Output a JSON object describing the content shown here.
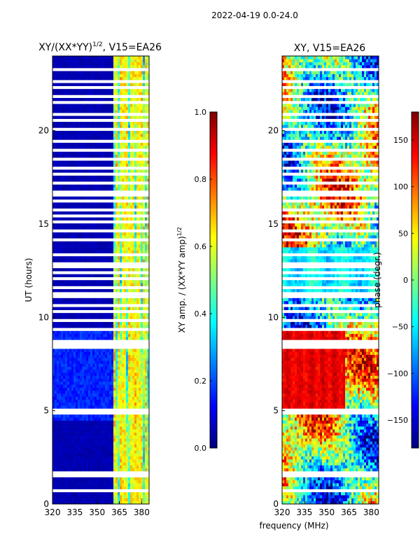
{
  "suptitle": "2022-04-19 0.0-24.0",
  "shared_xlabel": "frequency (MHz)",
  "colors": {
    "jet": [
      "#00007f",
      "#0000ff",
      "#007fff",
      "#00ffff",
      "#7fff7f",
      "#ffff00",
      "#ff7f00",
      "#ff0000",
      "#7f0000"
    ],
    "flag_gap": "#ffffff",
    "frame": "#000000"
  },
  "chart_data": [
    {
      "type": "heatmap",
      "title_base": "XY/(XX*YY)",
      "title_power": "1/2",
      "title_suffix": ", V15=EA26",
      "xlabel": "",
      "ylabel": "UT (hours)",
      "xlim": [
        320,
        385
      ],
      "ylim": [
        0,
        24
      ],
      "xticks": [
        320,
        335,
        350,
        365,
        380
      ],
      "yticks": [
        0,
        5,
        10,
        15,
        20
      ],
      "colorbar": {
        "label": "XY amp. / (XX*YY amp)",
        "label_power": "1/2",
        "range": [
          0.0,
          1.0
        ],
        "ticks": [
          "0.0",
          "0.2",
          "0.4",
          "0.6",
          "0.8",
          "1.0"
        ],
        "tick_values": [
          0.0,
          0.2,
          0.4,
          0.6,
          0.8,
          1.0
        ]
      }
    },
    {
      "type": "heatmap",
      "title": "XY, V15=EA26",
      "xlabel": "frequency (MHz)",
      "ylabel": "",
      "xlim": [
        320,
        385
      ],
      "ylim": [
        0,
        24
      ],
      "xticks": [
        320,
        335,
        350,
        365,
        380
      ],
      "yticks": [
        0,
        5,
        10,
        15,
        20
      ],
      "colorbar": {
        "label": "phase (degr.)",
        "range": [
          -180,
          180
        ],
        "ticks": [
          "−150",
          "−100",
          "−50",
          "0",
          "50",
          "100",
          "150"
        ],
        "tick_values": [
          -150,
          -100,
          -50,
          0,
          50,
          100,
          150
        ]
      }
    }
  ]
}
